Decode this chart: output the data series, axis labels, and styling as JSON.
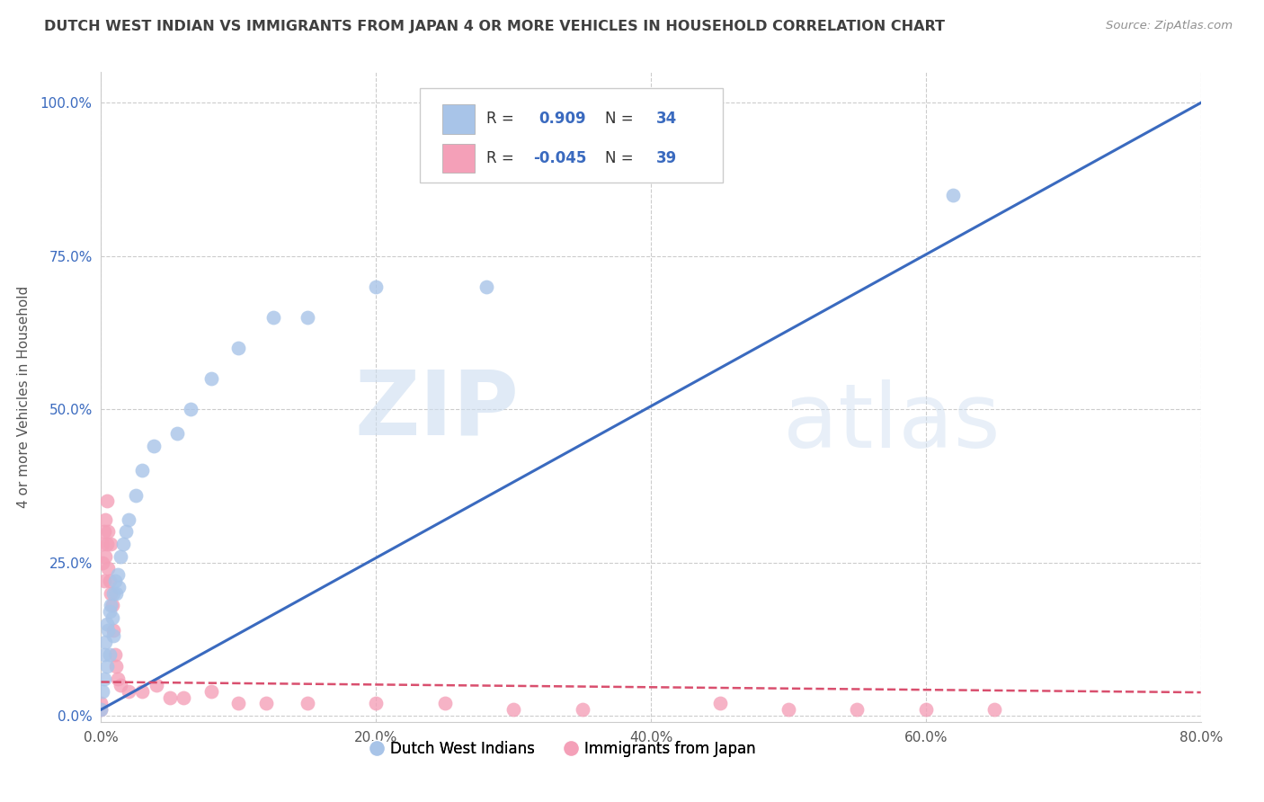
{
  "title": "DUTCH WEST INDIAN VS IMMIGRANTS FROM JAPAN 4 OR MORE VEHICLES IN HOUSEHOLD CORRELATION CHART",
  "source": "Source: ZipAtlas.com",
  "ylabel": "4 or more Vehicles in Household",
  "xlim": [
    0.0,
    0.8
  ],
  "ylim": [
    -0.01,
    1.05
  ],
  "watermark_zip": "ZIP",
  "watermark_atlas": "atlas",
  "blue_color": "#a8c4e8",
  "pink_color": "#f4a0b8",
  "blue_line_color": "#3a6abf",
  "pink_line_color": "#d94f6e",
  "title_color": "#404040",
  "source_color": "#909090",
  "grid_color": "#cccccc",
  "dutch_x": [
    0.0,
    0.001,
    0.002,
    0.002,
    0.003,
    0.004,
    0.004,
    0.005,
    0.006,
    0.006,
    0.007,
    0.008,
    0.009,
    0.009,
    0.01,
    0.011,
    0.012,
    0.013,
    0.014,
    0.016,
    0.018,
    0.02,
    0.025,
    0.03,
    0.038,
    0.055,
    0.065,
    0.08,
    0.1,
    0.125,
    0.15,
    0.2,
    0.28,
    0.62
  ],
  "dutch_y": [
    0.01,
    0.04,
    0.06,
    0.1,
    0.12,
    0.08,
    0.15,
    0.14,
    0.17,
    0.1,
    0.18,
    0.16,
    0.2,
    0.13,
    0.22,
    0.2,
    0.23,
    0.21,
    0.26,
    0.28,
    0.3,
    0.32,
    0.36,
    0.4,
    0.44,
    0.46,
    0.5,
    0.55,
    0.6,
    0.65,
    0.65,
    0.7,
    0.7,
    0.85
  ],
  "japan_x": [
    0.0,
    0.0,
    0.001,
    0.001,
    0.002,
    0.002,
    0.003,
    0.003,
    0.004,
    0.004,
    0.005,
    0.005,
    0.006,
    0.007,
    0.007,
    0.008,
    0.009,
    0.01,
    0.011,
    0.012,
    0.014,
    0.02,
    0.03,
    0.04,
    0.05,
    0.06,
    0.08,
    0.1,
    0.12,
    0.15,
    0.2,
    0.25,
    0.3,
    0.35,
    0.45,
    0.5,
    0.55,
    0.6,
    0.65
  ],
  "japan_y": [
    0.01,
    0.02,
    0.25,
    0.28,
    0.3,
    0.22,
    0.32,
    0.26,
    0.35,
    0.28,
    0.3,
    0.24,
    0.22,
    0.28,
    0.2,
    0.18,
    0.14,
    0.1,
    0.08,
    0.06,
    0.05,
    0.04,
    0.04,
    0.05,
    0.03,
    0.03,
    0.04,
    0.02,
    0.02,
    0.02,
    0.02,
    0.02,
    0.01,
    0.01,
    0.02,
    0.01,
    0.01,
    0.01,
    0.01
  ],
  "blue_line_x": [
    0.0,
    0.8
  ],
  "blue_line_y": [
    0.01,
    1.0
  ],
  "pink_line_x": [
    0.0,
    0.8
  ],
  "pink_line_y": [
    0.055,
    0.038
  ],
  "xticks": [
    0.0,
    0.2,
    0.4,
    0.6,
    0.8
  ],
  "yticks": [
    0.0,
    0.25,
    0.5,
    0.75,
    1.0
  ],
  "xtick_labels": [
    "0.0%",
    "20.0%",
    "40.0%",
    "60.0%",
    "80.0%"
  ],
  "ytick_labels": [
    "0.0%",
    "25.0%",
    "50.0%",
    "75.0%",
    "100.0%"
  ],
  "legend_blue_r": "0.909",
  "legend_blue_n": "34",
  "legend_pink_r": "-0.045",
  "legend_pink_n": "39",
  "bottom_label_blue": "Dutch West Indians",
  "bottom_label_pink": "Immigrants from Japan"
}
